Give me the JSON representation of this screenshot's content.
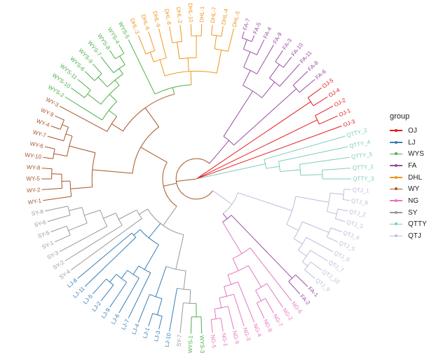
{
  "legend": {
    "title": "group",
    "items": [
      {
        "label": "OJ",
        "color": "#e41a1c"
      },
      {
        "label": "LJ",
        "color": "#377eb8"
      },
      {
        "label": "WYS",
        "color": "#4daf4a"
      },
      {
        "label": "FA",
        "color": "#984ea3"
      },
      {
        "label": "DHL",
        "color": "#f0961e"
      },
      {
        "label": "WY",
        "color": "#a65628"
      },
      {
        "label": "NG",
        "color": "#e377c2"
      },
      {
        "label": "SY",
        "color": "#999999"
      },
      {
        "label": "QTTY",
        "color": "#7fcdbb"
      },
      {
        "label": "QTJ",
        "color": "#bcbddc"
      }
    ]
  },
  "tree": {
    "layout": "circular",
    "leaf_depth_default": 92,
    "root": {
      "d": 0,
      "g": "OJ",
      "ch": [
        {
          "d": 12,
          "g": "WY",
          "ch": [
            {
              "d": 26,
              "g": "QTJ",
              "ch": [
                {
                  "d": 60,
                  "ch": [
                    {
                      "d": 80,
                      "ch": [
                        {
                          "d": 88,
                          "ch": [
                            "QTJ_1",
                            "QTJ_8"
                          ]
                        },
                        {
                          "d": 86,
                          "ch": [
                            "QTJ_2",
                            "QTJ_3"
                          ]
                        }
                      ]
                    },
                    {
                      "d": 68,
                      "ch": [
                        {
                          "d": 85,
                          "ch": [
                            "QTJ_4",
                            "QTJ_5"
                          ]
                        },
                        {
                          "d": 74,
                          "ch": [
                            "QTJ_6",
                            {
                              "d": 80,
                              "ch": [
                                "QTJ_7",
                                {
                                  "d": 84,
                                  "ch": [
                                    "QTJ_10",
                                    "QTJ_9"
                                  ]
                                }
                              ]
                            }
                          ]
                        }
                      ]
                    }
                  ]
                },
                {
                  "d": 30,
                  "g": "FA",
                  "ch": [
                    {
                      "d": 82,
                      "ch": [
                        "FA-1",
                        "FA-2"
                      ]
                    },
                    {
                      "d": 52,
                      "ch": [
                        "NG-6",
                        {
                          "d": 60,
                          "ch": [
                            {
                              "d": 75,
                              "ch": [
                                "NG-2",
                                {
                                  "d": 82,
                                  "ch": [
                                    "NG-7",
                                    "NG-8"
                                  ]
                                }
                              ]
                            },
                            {
                              "d": 66,
                              "ch": [
                                "NG-4",
                                {
                                  "d": 72,
                                  "ch": [
                                    "NG-3",
                                    {
                                      "d": 78,
                                      "ch": [
                                        "NG-9",
                                        {
                                          "d": 84,
                                          "ch": [
                                            "NG-1",
                                            "NG-5"
                                          ]
                                        }
                                      ]
                                    }
                                  ]
                                }
                              ]
                            }
                          ]
                        }
                      ]
                    }
                  ]
                }
              ]
            },
            {
              "d": 20,
              "g": "WY",
              "ch": [
                {
                  "d": 34,
                  "g": "SY",
                  "ch": [
                    {
                      "d": 55,
                      "g": "SY",
                      "ch": [
                        {
                          "d": 66,
                          "g": "SY",
                          "ch": [
                            {
                              "d": 74,
                              "g": "SY",
                              "ch": [
                                {
                                  "d": 82,
                                  "ch": [
                                    "WYS-3",
                                    "WYS-1"
                                  ]
                                },
                                "SY-7"
                              ]
                            },
                            "LJ-10"
                          ]
                        },
                        {
                          "d": 74,
                          "ch": [
                            {
                              "d": 84,
                              "ch": [
                                "LJ-3",
                                "LJ-1"
                              ]
                            },
                            "LJ-4"
                          ]
                        }
                      ]
                    },
                    {
                      "d": 45,
                      "ch": [
                        {
                          "d": 62,
                          "ch": [
                            "LJ-7",
                            {
                              "d": 68,
                              "ch": [
                                "LJ-6",
                                {
                                  "d": 74,
                                  "ch": [
                                    "LJ-9",
                                    {
                                      "d": 80,
                                      "ch": [
                                        "LJ-2",
                                        "LJ-5"
                                      ]
                                    }
                                  ]
                                }
                              ]
                            }
                          ]
                        },
                        {
                          "d": 50,
                          "ch": [
                            "LJ-11",
                            "LJ-8"
                          ]
                        }
                      ]
                    },
                    {
                      "d": 40,
                      "ch": [
                        "SY-4",
                        {
                          "d": 52,
                          "ch": [
                            "SY-2",
                            {
                              "d": 60,
                              "ch": [
                                "SY-3",
                                {
                                  "d": 70,
                                  "ch": [
                                    {
                                      "d": 82,
                                      "ch": [
                                        "SY-1",
                                        "SY-5"
                                      ]
                                    },
                                    {
                                      "d": 78,
                                      "ch": [
                                        "SY-6",
                                        "SY-8"
                                      ]
                                    }
                                  ]
                                }
                              ]
                            }
                          ]
                        }
                      ]
                    }
                  ]
                },
                {
                  "d": 38,
                  "g": "WY",
                  "ch": [
                    {
                      "d": 62,
                      "ch": [
                        {
                          "d": 75,
                          "ch": [
                            "WY-1",
                            {
                              "d": 80,
                              "ch": [
                                "WY-2",
                                {
                                  "d": 86,
                                  "ch": [
                                    "WY-5",
                                    "WY-8"
                                  ]
                                }
                              ]
                            }
                          ]
                        },
                        {
                          "d": 78,
                          "ch": [
                            {
                              "d": 86,
                              "ch": [
                                "WY-10",
                                "WY-6"
                              ]
                            },
                            {
                              "d": 82,
                              "ch": [
                                "WY-7",
                                {
                                  "d": 86,
                                  "ch": [
                                    "WY-4",
                                    "WY-9"
                                  ]
                                }
                              ]
                            }
                          ]
                        }
                      ]
                    },
                    {
                      "d": 52,
                      "g": "WY",
                      "ch": [
                        {
                          "d": 60,
                          "g": "WY",
                          "ch": [
                            "WY-3",
                            {
                              "d": 66,
                              "ch": [
                                "WYS-2",
                                {
                                  "d": 72,
                                  "ch": [
                                    {
                                      "d": 82,
                                      "ch": [
                                        "WYS-10",
                                        "WYS-11"
                                      ]
                                    },
                                    {
                                      "d": 76,
                                      "ch": [
                                        {
                                          "d": 84,
                                          "ch": [
                                            "WYS-6",
                                            "WYS-9"
                                          ]
                                        },
                                        {
                                          "d": 80,
                                          "ch": [
                                            "WYS-7",
                                            {
                                              "d": 86,
                                              "ch": [
                                                "WYS-8",
                                                "WYS-4"
                                              ]
                                            }
                                          ]
                                        }
                                      ]
                                    }
                                  ]
                                }
                              ]
                            }
                          ]
                        },
                        {
                          "d": 56,
                          "g": "WYS",
                          "ch": [
                            "WYS-5",
                            {
                              "d": 64,
                              "ch": [
                                {
                                  "d": 74,
                                  "ch": [
                                    {
                                      "d": 80,
                                      "ch": [
                                        "DHL-3",
                                        "DHL-6"
                                      ]
                                    },
                                    "DHL-9"
                                  ]
                                },
                                {
                                  "d": 72,
                                  "ch": [
                                    {
                                      "d": 82,
                                      "ch": [
                                        "DHL-8",
                                        "DHL-2"
                                      ]
                                    },
                                    {
                                      "d": 85,
                                      "ch": [
                                        "DHL-10",
                                        "DHL-1"
                                      ]
                                    }
                                  ]
                                },
                                {
                                  "d": 78,
                                  "ch": [
                                    {
                                      "d": 86,
                                      "ch": [
                                        "DHL-7",
                                        "DHL-4"
                                      ]
                                    },
                                    "DHL-5"
                                  ]
                                }
                              ]
                            }
                          ]
                        }
                      ]
                    }
                  ]
                }
              ]
            },
            {
              "d": 30,
              "g": "FA",
              "ch": [
                {
                  "d": 62,
                  "ch": [
                    {
                      "d": 72,
                      "ch": [
                        {
                          "d": 82,
                          "ch": [
                            {
                              "d": 88,
                              "ch": [
                                "FA-7",
                                "FA-5"
                              ]
                            },
                            "FA-4"
                          ]
                        },
                        "FA-9"
                      ]
                    },
                    {
                      "d": 74,
                      "ch": [
                        {
                          "d": 84,
                          "ch": [
                            "FA-3",
                            "FA-10"
                          ]
                        },
                        "FA-11"
                      ]
                    }
                  ]
                },
                {
                  "d": 80,
                  "ch": [
                    "FA-8",
                    "FA-6"
                  ]
                }
              ]
            }
          ]
        },
        {
          "d": 1,
          "g": "OJ",
          "ch": [
            {
              "d": 82,
              "ch": [
                "OJ-5",
                "OJ-4"
              ]
            },
            {
              "d": 80,
              "ch": [
                "OJ-2",
                "OJ-1"
              ]
            },
            "OJ-3",
            {
              "d": 42,
              "g": "OJ",
              "ch": [
                "QTTY_2",
                {
                  "d": 50,
                  "ch": [
                    "QTTY_4",
                    {
                      "d": 62,
                      "ch": [
                        "QTTY_5",
                        {
                          "d": 75,
                          "ch": [
                            "QTTY_1",
                            "QTTY_3"
                          ]
                        }
                      ]
                    }
                  ]
                }
              ]
            }
          ]
        }
      ]
    }
  }
}
